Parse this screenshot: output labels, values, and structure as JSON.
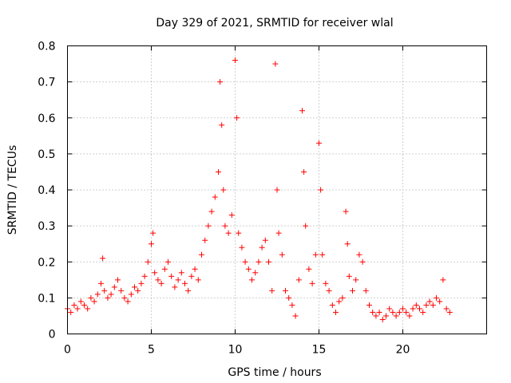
{
  "chart_data": {
    "type": "scatter",
    "title": "Day 329 of 2021, SRMTID for receiver wlal",
    "xlabel": "GPS time / hours",
    "ylabel": "SRMTID / TECUs",
    "xlim": [
      0,
      25
    ],
    "ylim": [
      0,
      0.8
    ],
    "x_ticks": [
      "0",
      "5",
      "10",
      "15",
      "20"
    ],
    "y_ticks": [
      "0",
      "0.1",
      "0.2",
      "0.3",
      "0.4",
      "0.5",
      "0.6",
      "0.7",
      "0.8"
    ],
    "grid": true,
    "marker": "+",
    "marker_color": "#ff0000",
    "series": [
      {
        "name": "SRMTID",
        "x": [
          0.0,
          0.2,
          0.4,
          0.6,
          0.8,
          1.0,
          1.2,
          1.4,
          1.6,
          1.8,
          2.0,
          2.1,
          2.2,
          2.4,
          2.6,
          2.8,
          3.0,
          3.2,
          3.4,
          3.6,
          3.8,
          4.0,
          4.2,
          4.4,
          4.6,
          4.8,
          5.0,
          5.1,
          5.2,
          5.4,
          5.6,
          5.8,
          6.0,
          6.2,
          6.4,
          6.6,
          6.8,
          7.0,
          7.2,
          7.4,
          7.6,
          7.8,
          8.0,
          8.2,
          8.4,
          8.6,
          8.8,
          9.0,
          9.1,
          9.2,
          9.3,
          9.4,
          9.6,
          9.8,
          10.0,
          10.1,
          10.2,
          10.4,
          10.6,
          10.8,
          11.0,
          11.2,
          11.4,
          11.6,
          11.8,
          12.0,
          12.2,
          12.4,
          12.5,
          12.6,
          12.8,
          13.0,
          13.2,
          13.4,
          13.6,
          13.8,
          14.0,
          14.1,
          14.2,
          14.4,
          14.6,
          14.8,
          15.0,
          15.1,
          15.2,
          15.4,
          15.6,
          15.8,
          16.0,
          16.2,
          16.4,
          16.6,
          16.7,
          16.8,
          17.0,
          17.2,
          17.4,
          17.6,
          17.8,
          18.0,
          18.2,
          18.4,
          18.6,
          18.8,
          19.0,
          19.2,
          19.4,
          19.6,
          19.8,
          20.0,
          20.2,
          20.4,
          20.6,
          20.8,
          21.0,
          21.2,
          21.4,
          21.6,
          21.8,
          22.0,
          22.2,
          22.4,
          22.6,
          22.8
        ],
        "y": [
          0.07,
          0.06,
          0.08,
          0.07,
          0.09,
          0.08,
          0.07,
          0.1,
          0.09,
          0.11,
          0.14,
          0.21,
          0.12,
          0.1,
          0.11,
          0.13,
          0.15,
          0.12,
          0.1,
          0.09,
          0.11,
          0.13,
          0.12,
          0.14,
          0.16,
          0.2,
          0.25,
          0.28,
          0.17,
          0.15,
          0.14,
          0.18,
          0.2,
          0.16,
          0.13,
          0.15,
          0.17,
          0.14,
          0.12,
          0.16,
          0.18,
          0.15,
          0.22,
          0.26,
          0.3,
          0.34,
          0.38,
          0.45,
          0.7,
          0.58,
          0.4,
          0.3,
          0.28,
          0.33,
          0.76,
          0.6,
          0.28,
          0.24,
          0.2,
          0.18,
          0.15,
          0.17,
          0.2,
          0.24,
          0.26,
          0.2,
          0.12,
          0.75,
          0.4,
          0.28,
          0.22,
          0.12,
          0.1,
          0.08,
          0.05,
          0.15,
          0.62,
          0.45,
          0.3,
          0.18,
          0.14,
          0.22,
          0.53,
          0.4,
          0.22,
          0.14,
          0.12,
          0.08,
          0.06,
          0.09,
          0.1,
          0.34,
          0.25,
          0.16,
          0.12,
          0.15,
          0.22,
          0.2,
          0.12,
          0.08,
          0.06,
          0.05,
          0.06,
          0.04,
          0.05,
          0.07,
          0.06,
          0.05,
          0.06,
          0.07,
          0.06,
          0.05,
          0.07,
          0.08,
          0.07,
          0.06,
          0.08,
          0.09,
          0.08,
          0.1,
          0.09,
          0.15,
          0.07,
          0.06
        ]
      }
    ]
  }
}
